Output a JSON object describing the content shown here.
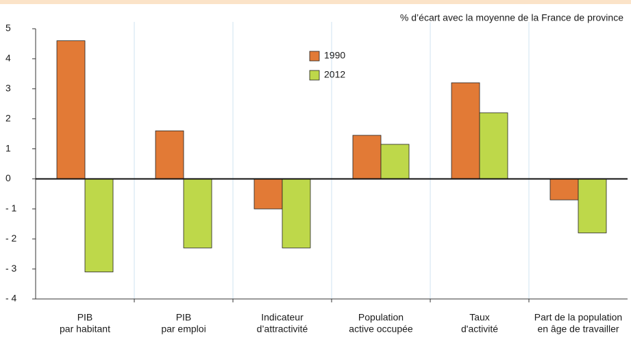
{
  "chart_data": {
    "type": "bar",
    "subtitle": "% d’écart avec la moyenne de la France de province",
    "categories": [
      [
        "PIB",
        "par habitant"
      ],
      [
        "PIB",
        "par emploi"
      ],
      [
        "Indicateur",
        "d’attractivité"
      ],
      [
        "Population",
        "active occupée"
      ],
      [
        "Taux",
        "d'activité"
      ],
      [
        "Part de la population",
        "en âge de travailler"
      ]
    ],
    "series": [
      {
        "name": "1990",
        "color": "#e27a36",
        "values": [
          4.6,
          1.6,
          -1.0,
          1.45,
          3.2,
          -0.7
        ]
      },
      {
        "name": "2012",
        "color": "#bed84a",
        "values": [
          -3.1,
          -2.3,
          -2.3,
          1.15,
          2.2,
          -1.8
        ]
      }
    ],
    "ylim": [
      -4,
      5
    ],
    "yticks": [
      {
        "value": -4,
        "label": "- 4"
      },
      {
        "value": -3,
        "label": "- 3"
      },
      {
        "value": -2,
        "label": "- 2"
      },
      {
        "value": -1,
        "label": "- 1"
      },
      0,
      1,
      2,
      3,
      4,
      5
    ],
    "grid": true
  }
}
